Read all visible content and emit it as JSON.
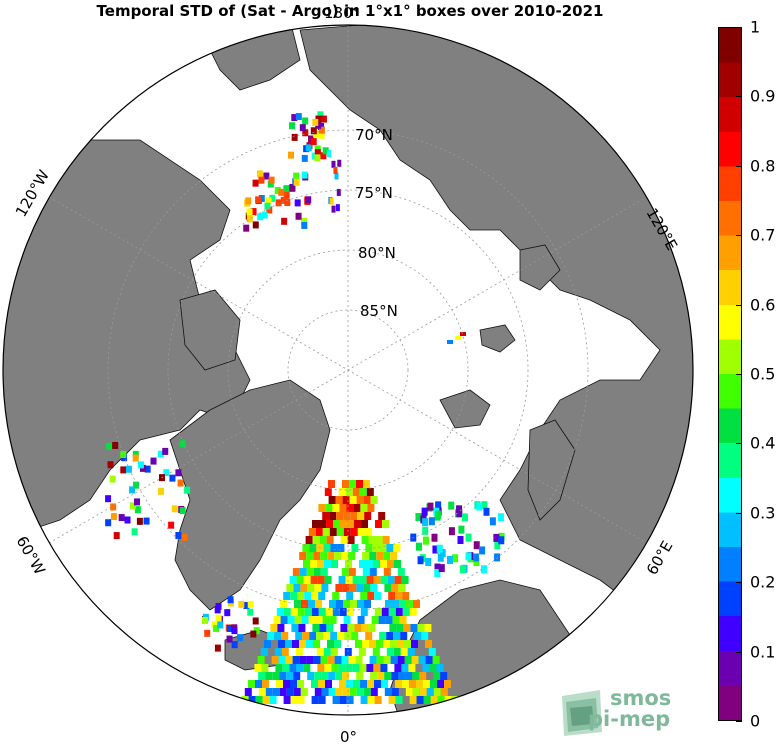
{
  "title": "Temporal STD of (Sat - Argo) in 1°x1° boxes over 2010-2021",
  "map": {
    "projection": "north polar stereographic",
    "lat_labels": [
      "70°N",
      "75°N",
      "80°N",
      "85°N"
    ],
    "lon_labels": {
      "top": "180°",
      "bottom": "0°",
      "left_upper": "120°W",
      "left_lower": "60°W",
      "right_upper": "120°E",
      "right_lower": "60°E"
    },
    "colors": {
      "land": "#808080",
      "ocean_nodata": "#ffffff",
      "frame": "#000000"
    }
  },
  "colorbar": {
    "ticks": [
      "0",
      "0.1",
      "0.2",
      "0.3",
      "0.4",
      "0.5",
      "0.6",
      "0.7",
      "0.8",
      "0.9",
      "1"
    ],
    "colormap": [
      "#800080",
      "#6a00b0",
      "#4000ff",
      "#0040ff",
      "#0080ff",
      "#00c0ff",
      "#00ffff",
      "#00ff80",
      "#00e040",
      "#40ff00",
      "#a0ff00",
      "#ffff00",
      "#ffd000",
      "#ffa000",
      "#ff7000",
      "#ff4000",
      "#ff0000",
      "#d00000",
      "#a00000",
      "#800000"
    ],
    "range": [
      0,
      1
    ]
  },
  "logo": {
    "line1": "smos",
    "line2": "pi-mep"
  }
}
